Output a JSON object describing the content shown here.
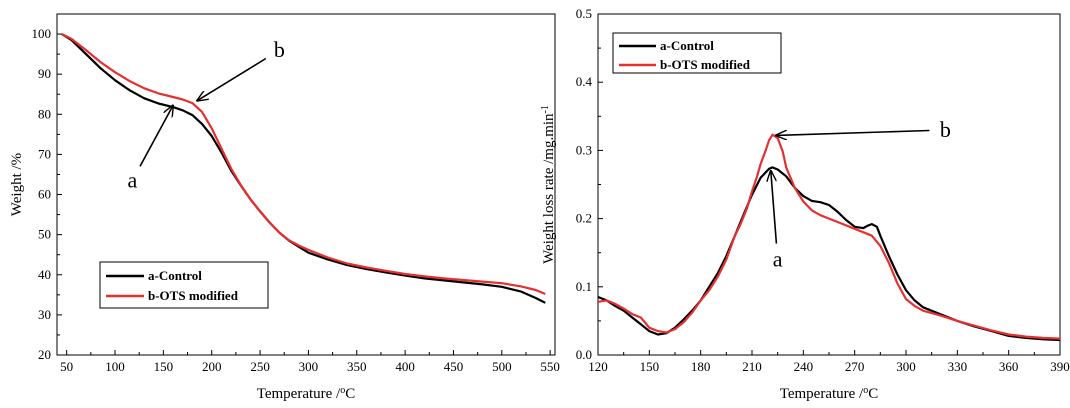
{
  "chart_data": [
    {
      "type": "line",
      "xlabel": "Temperature /°C",
      "ylabel": "Weight /%",
      "xlim": [
        40,
        555
      ],
      "ylim": [
        20,
        105
      ],
      "xticks": [
        50,
        100,
        150,
        200,
        250,
        300,
        350,
        400,
        450,
        500,
        550
      ],
      "yticks": [
        20,
        30,
        40,
        50,
        60,
        70,
        80,
        90,
        100
      ],
      "legend": "bottom-left",
      "series": [
        {
          "name": "a-Control",
          "color": "#000000",
          "x": [
            45,
            55,
            70,
            85,
            100,
            115,
            130,
            145,
            160,
            170,
            180,
            190,
            200,
            210,
            220,
            230,
            240,
            250,
            260,
            270,
            280,
            290,
            300,
            320,
            340,
            360,
            380,
            400,
            420,
            440,
            460,
            480,
            500,
            520,
            535,
            545
          ],
          "y": [
            100,
            98.5,
            95,
            91.5,
            88.5,
            86,
            84,
            82.7,
            81.8,
            81,
            79.8,
            77.6,
            74.6,
            70.5,
            66,
            62.3,
            58.8,
            55.8,
            53,
            50.5,
            48.5,
            47,
            45.5,
            43.8,
            42.4,
            41.4,
            40.6,
            39.8,
            39.1,
            38.6,
            38.1,
            37.6,
            37,
            35.8,
            34.2,
            33
          ]
        },
        {
          "name": "b-OTS modified",
          "color": "#e63030",
          "x": [
            45,
            55,
            70,
            85,
            100,
            115,
            130,
            145,
            160,
            170,
            180,
            190,
            200,
            210,
            220,
            230,
            240,
            250,
            260,
            270,
            280,
            290,
            300,
            320,
            340,
            360,
            380,
            400,
            420,
            440,
            460,
            480,
            500,
            520,
            535,
            545
          ],
          "y": [
            100,
            98.8,
            96,
            93,
            90.5,
            88.3,
            86.5,
            85.2,
            84.3,
            83.7,
            82.8,
            80.6,
            76.5,
            71.5,
            66.5,
            62.4,
            58.8,
            55.8,
            53,
            50.5,
            48.6,
            47.3,
            46.2,
            44.3,
            42.8,
            41.8,
            41,
            40.2,
            39.6,
            39.1,
            38.7,
            38.3,
            37.9,
            37.1,
            36.2,
            35.2
          ]
        }
      ],
      "annotations": [
        {
          "label": "a",
          "target": [
            160,
            82.2
          ],
          "text_at": [
            118,
            63.5
          ]
        },
        {
          "label": "b",
          "target": [
            185,
            83.4
          ],
          "text_at": [
            270,
            96
          ]
        }
      ]
    },
    {
      "type": "line",
      "xlabel": "Temperature /°C",
      "ylabel": "Weight loss rate /mg.min⁻¹",
      "xlim": [
        120,
        390
      ],
      "ylim": [
        0,
        0.5
      ],
      "xticks": [
        120,
        150,
        180,
        210,
        240,
        270,
        300,
        330,
        360,
        390
      ],
      "yticks": [
        0.0,
        0.1,
        0.2,
        0.3,
        0.4,
        0.5
      ],
      "legend": "top-left",
      "series": [
        {
          "name": "a-Control",
          "color": "#000000",
          "x": [
            120,
            125,
            130,
            135,
            140,
            145,
            150,
            155,
            160,
            165,
            170,
            175,
            180,
            185,
            190,
            195,
            200,
            205,
            210,
            215,
            220,
            222,
            225,
            230,
            235,
            240,
            245,
            250,
            255,
            260,
            265,
            270,
            275,
            278,
            280,
            283,
            285,
            290,
            295,
            300,
            305,
            310,
            320,
            330,
            340,
            350,
            360,
            370,
            380,
            390
          ],
          "y": [
            0.085,
            0.08,
            0.072,
            0.065,
            0.055,
            0.045,
            0.035,
            0.03,
            0.032,
            0.04,
            0.052,
            0.065,
            0.08,
            0.1,
            0.12,
            0.145,
            0.175,
            0.205,
            0.235,
            0.26,
            0.273,
            0.275,
            0.272,
            0.262,
            0.245,
            0.233,
            0.226,
            0.224,
            0.22,
            0.21,
            0.198,
            0.188,
            0.186,
            0.19,
            0.192,
            0.188,
            0.175,
            0.145,
            0.118,
            0.095,
            0.08,
            0.07,
            0.06,
            0.05,
            0.042,
            0.035,
            0.028,
            0.025,
            0.023,
            0.022
          ]
        },
        {
          "name": "b-OTS modified",
          "color": "#e63030",
          "x": [
            120,
            125,
            130,
            135,
            140,
            145,
            150,
            155,
            160,
            165,
            170,
            175,
            180,
            185,
            190,
            195,
            200,
            203,
            207,
            210,
            213,
            215,
            218,
            220,
            222,
            225,
            228,
            230,
            235,
            240,
            245,
            250,
            255,
            260,
            265,
            270,
            275,
            280,
            285,
            290,
            295,
            300,
            305,
            310,
            320,
            330,
            340,
            350,
            360,
            370,
            380,
            390
          ],
          "y": [
            0.078,
            0.08,
            0.075,
            0.068,
            0.06,
            0.055,
            0.04,
            0.035,
            0.033,
            0.038,
            0.048,
            0.062,
            0.08,
            0.095,
            0.115,
            0.14,
            0.175,
            0.19,
            0.215,
            0.24,
            0.262,
            0.28,
            0.3,
            0.315,
            0.323,
            0.318,
            0.298,
            0.275,
            0.245,
            0.225,
            0.212,
            0.205,
            0.2,
            0.195,
            0.19,
            0.185,
            0.18,
            0.175,
            0.16,
            0.135,
            0.105,
            0.082,
            0.072,
            0.065,
            0.058,
            0.05,
            0.043,
            0.036,
            0.03,
            0.027,
            0.025,
            0.024
          ]
        }
      ],
      "annotations": [
        {
          "label": "a",
          "target": [
            221,
            0.27
          ],
          "text_at": [
            225,
            0.14
          ]
        },
        {
          "label": "b",
          "target": [
            224,
            0.322
          ],
          "text_at": [
            323,
            0.33
          ]
        }
      ]
    }
  ]
}
